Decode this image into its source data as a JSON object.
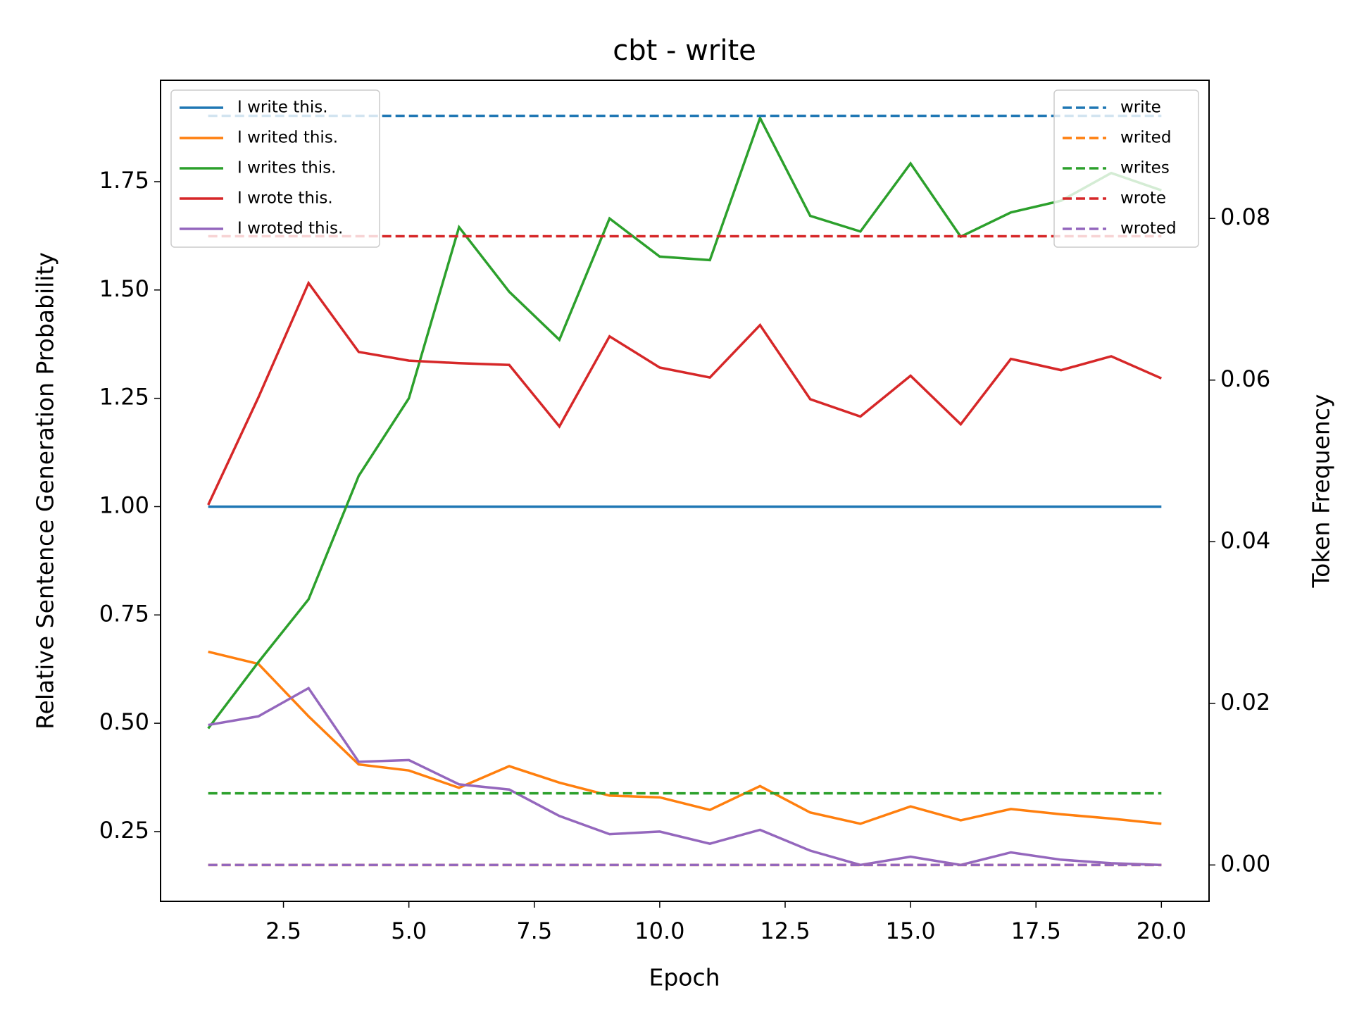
{
  "chart_data": {
    "type": "line",
    "title": "cbt - write",
    "xlabel": "Epoch",
    "ylabel": "Relative Sentence Generation Probability",
    "y2label": "Token Frequency",
    "x": [
      1,
      2,
      3,
      4,
      5,
      6,
      7,
      8,
      9,
      10,
      11,
      12,
      13,
      14,
      15,
      16,
      17,
      18,
      19,
      20
    ],
    "xlim": [
      0.05,
      20.95
    ],
    "xticks": [
      2.5,
      {
        "value": 5,
        "label": "5.0"
      },
      7.5,
      {
        "value": 10,
        "label": "10.0"
      },
      12.5,
      {
        "value": 15,
        "label": "15.0"
      },
      17.5,
      {
        "value": 20,
        "label": "20.0"
      }
    ],
    "ylim": [
      0.089,
      1.984
    ],
    "yticks": [
      0.25,
      {
        "value": 0.5,
        "label": "0.50"
      },
      0.75,
      {
        "value": 1,
        "label": "1.00"
      },
      1.25,
      {
        "value": 1.5,
        "label": "1.50"
      },
      1.75
    ],
    "y2lim": [
      -0.0045,
      0.0971
    ],
    "y2ticks": [
      {
        "value": 0,
        "label": "0.00"
      },
      0.02,
      0.04,
      0.06,
      0.08
    ],
    "legend": "upper left",
    "legend2": "upper right",
    "series": [
      {
        "name": "I write this.",
        "color": "#1f77b4",
        "values": [
          1,
          1,
          1,
          1,
          1,
          1,
          1,
          1,
          1,
          1,
          1,
          1,
          1,
          1,
          1,
          1,
          1,
          1,
          1,
          1
        ]
      },
      {
        "name": "I writed this.",
        "color": "#ff7f0e",
        "values": [
          0.665,
          0.637,
          0.516,
          0.405,
          0.391,
          0.351,
          0.401,
          0.363,
          0.333,
          0.329,
          0.3,
          0.355,
          0.294,
          0.268,
          0.308,
          0.276,
          0.302,
          0.29,
          0.28,
          0.268
        ]
      },
      {
        "name": "I writes this.",
        "color": "#2ca02c",
        "values": [
          0.488,
          0.641,
          0.786,
          1.071,
          1.25,
          1.645,
          1.496,
          1.385,
          1.665,
          1.577,
          1.569,
          1.897,
          1.671,
          1.635,
          1.792,
          1.623,
          1.679,
          1.706,
          1.77,
          1.73
        ]
      },
      {
        "name": "I wrote this.",
        "color": "#d62728",
        "values": [
          1.004,
          1.252,
          1.516,
          1.357,
          1.337,
          1.331,
          1.327,
          1.185,
          1.393,
          1.321,
          1.298,
          1.419,
          1.248,
          1.208,
          1.302,
          1.19,
          1.341,
          1.315,
          1.347,
          1.296
        ]
      },
      {
        "name": "I wroted this.",
        "color": "#9467bd",
        "values": [
          0.496,
          0.516,
          0.581,
          0.411,
          0.415,
          0.359,
          0.347,
          0.286,
          0.244,
          0.25,
          0.222,
          0.254,
          0.206,
          0.173,
          0.192,
          0.173,
          0.202,
          0.185,
          0.177,
          0.173
        ]
      },
      {
        "name": "write",
        "color": "#1f77b4",
        "axis": "y2",
        "linestyle": "dashed",
        "values": [
          0.0927,
          0.0927,
          0.0927,
          0.0927,
          0.0927,
          0.0927,
          0.0927,
          0.0927,
          0.0927,
          0.0927,
          0.0927,
          0.0927,
          0.0927,
          0.0927,
          0.0927,
          0.0927,
          0.0927,
          0.0927,
          0.0927,
          0.0927
        ]
      },
      {
        "name": "writed",
        "color": "#ff7f0e",
        "axis": "y2",
        "linestyle": "dashed",
        "values": [
          0,
          0,
          0,
          0,
          0,
          0,
          0,
          0,
          0,
          0,
          0,
          0,
          0,
          0,
          0,
          0,
          0,
          0,
          0,
          0
        ]
      },
      {
        "name": "writes",
        "color": "#2ca02c",
        "axis": "y2",
        "linestyle": "dashed",
        "values": [
          0.00886,
          0.00886,
          0.00886,
          0.00886,
          0.00886,
          0.00886,
          0.00886,
          0.00886,
          0.00886,
          0.00886,
          0.00886,
          0.00886,
          0.00886,
          0.00886,
          0.00886,
          0.00886,
          0.00886,
          0.00886,
          0.00886,
          0.00886
        ]
      },
      {
        "name": "wrote",
        "color": "#d62728",
        "axis": "y2",
        "linestyle": "dashed",
        "values": [
          0.0778,
          0.0778,
          0.0778,
          0.0778,
          0.0778,
          0.0778,
          0.0778,
          0.0778,
          0.0778,
          0.0778,
          0.0778,
          0.0778,
          0.0778,
          0.0778,
          0.0778,
          0.0778,
          0.0778,
          0.0778,
          0.0778,
          0.0778
        ]
      },
      {
        "name": "wroted",
        "color": "#9467bd",
        "axis": "y2",
        "linestyle": "dashed",
        "values": [
          0,
          0,
          0,
          0,
          0,
          0,
          0,
          0,
          0,
          0,
          0,
          0,
          0,
          0,
          0,
          0,
          0,
          0,
          0,
          0
        ]
      }
    ]
  }
}
